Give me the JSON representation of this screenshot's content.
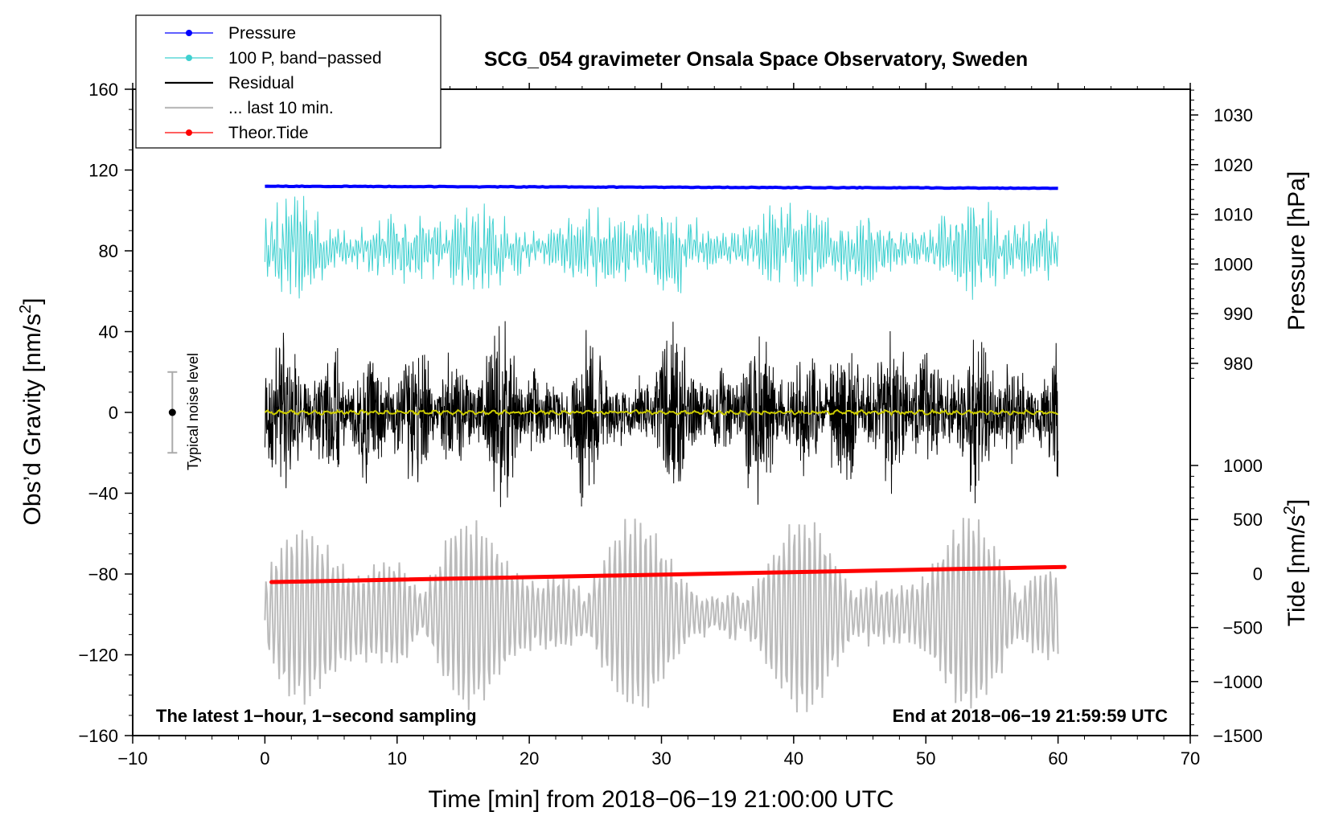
{
  "chart_data": {
    "type": "line",
    "title": "SCG_054 gravimeter Onsala Space Observatory, Sweden",
    "xlabel": "Time [min] from 2018−06−19 21:00:00 UTC",
    "ylabel_left": "Obs’d Gravity [nm/s",
    "ylabel_left_sup": "2",
    "ylabel_left_end": "]",
    "ylabel_right_pressure": "Pressure [hPa]",
    "ylabel_right_tide": "Tide [nm/s",
    "ylabel_right_tide_sup": "2",
    "ylabel_right_tide_end": "]",
    "xlim": [
      -10,
      70
    ],
    "ylim": [
      -160,
      160
    ],
    "x_ticks": [
      "−10",
      "0",
      "10",
      "20",
      "30",
      "40",
      "50",
      "60",
      "70"
    ],
    "y_ticks": [
      "−160",
      "−120",
      "−80",
      "−40",
      "0",
      "40",
      "80",
      "120",
      "160"
    ],
    "pressure_ticks": [
      "980",
      "990",
      "1000",
      "1010",
      "1020",
      "1030"
    ],
    "tide_ticks": [
      "−1500",
      "−1000",
      "−500",
      "0",
      "500",
      "1000"
    ],
    "note_left": "The latest 1−hour, 1−second sampling",
    "note_right": "End at 2018−06−19 21:59:59 UTC",
    "noise_label": "Typical noise level",
    "noise_bar": {
      "x": -7,
      "center": 0,
      "half_range": 20
    },
    "legend": [
      {
        "label": "Pressure",
        "color": "#0000ff",
        "marker": true
      },
      {
        "label": "100 P, band−passed",
        "color": "#3fd0d0",
        "marker": true
      },
      {
        "label": "Residual",
        "color": "#000000",
        "marker": false
      },
      {
        "label": "... last 10 min.",
        "color": "#bbbbbb",
        "marker": false
      },
      {
        "label": "Theor.Tide",
        "color": "#ff0000",
        "marker": true
      }
    ],
    "series": [
      {
        "name": "Pressure",
        "color": "#0000ff",
        "x_range": [
          0,
          60
        ],
        "y_start": 112,
        "y_end": 111
      },
      {
        "name": "100 P, band−passed",
        "color": "#3fd0d0",
        "x_range": [
          0,
          60
        ],
        "center": 81,
        "amplitude_min": 8,
        "amplitude_max": 28
      },
      {
        "name": "Residual",
        "color": "#000000",
        "x_range": [
          0,
          60
        ],
        "center": 0,
        "amplitude_min": 15,
        "amplitude_max": 55
      },
      {
        "name": "Residual smoothed",
        "color": "#cccc00",
        "x_range": [
          0,
          60
        ],
        "center": 0
      },
      {
        "name": "... last 10 min.",
        "color": "#bbbbbb",
        "x_range": [
          0,
          60
        ],
        "center": -100,
        "amplitude_min": 8,
        "amplitude_max": 48
      },
      {
        "name": "Theor.Tide",
        "color": "#ff0000",
        "x_range": [
          0.5,
          60.5
        ],
        "y_start": -84,
        "y_end": -76.5
      }
    ]
  }
}
